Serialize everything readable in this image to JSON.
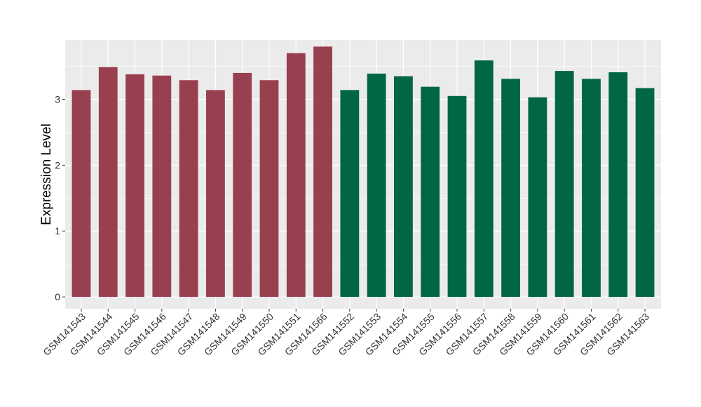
{
  "chart_data": {
    "type": "bar",
    "title": "",
    "xlabel": "",
    "ylabel": "Expression Level",
    "ylim": [
      -0.18,
      3.9
    ],
    "yticks": [
      0,
      1,
      2,
      3
    ],
    "grid": true,
    "categories": [
      "GSM141543",
      "GSM141544",
      "GSM141545",
      "GSM141546",
      "GSM141547",
      "GSM141548",
      "GSM141549",
      "GSM141550",
      "GSM141551",
      "GSM141566",
      "GSM141552",
      "GSM141553",
      "GSM141554",
      "GSM141555",
      "GSM141556",
      "GSM141557",
      "GSM141558",
      "GSM141559",
      "GSM141560",
      "GSM141561",
      "GSM141562",
      "GSM141563"
    ],
    "values": [
      3.14,
      3.49,
      3.38,
      3.36,
      3.29,
      3.14,
      3.4,
      3.29,
      3.7,
      3.8,
      3.14,
      3.39,
      3.35,
      3.19,
      3.05,
      3.59,
      3.31,
      3.03,
      3.43,
      3.31,
      3.41,
      3.17
    ],
    "bar_colors": [
      "#98404f",
      "#98404f",
      "#98404f",
      "#98404f",
      "#98404f",
      "#98404f",
      "#98404f",
      "#98404f",
      "#98404f",
      "#98404f",
      "#006644",
      "#006644",
      "#006644",
      "#006644",
      "#006644",
      "#006644",
      "#006644",
      "#006644",
      "#006644",
      "#006644",
      "#006644",
      "#006644"
    ],
    "panel_background": "#ebebeb",
    "grid_color": "#ffffff"
  }
}
